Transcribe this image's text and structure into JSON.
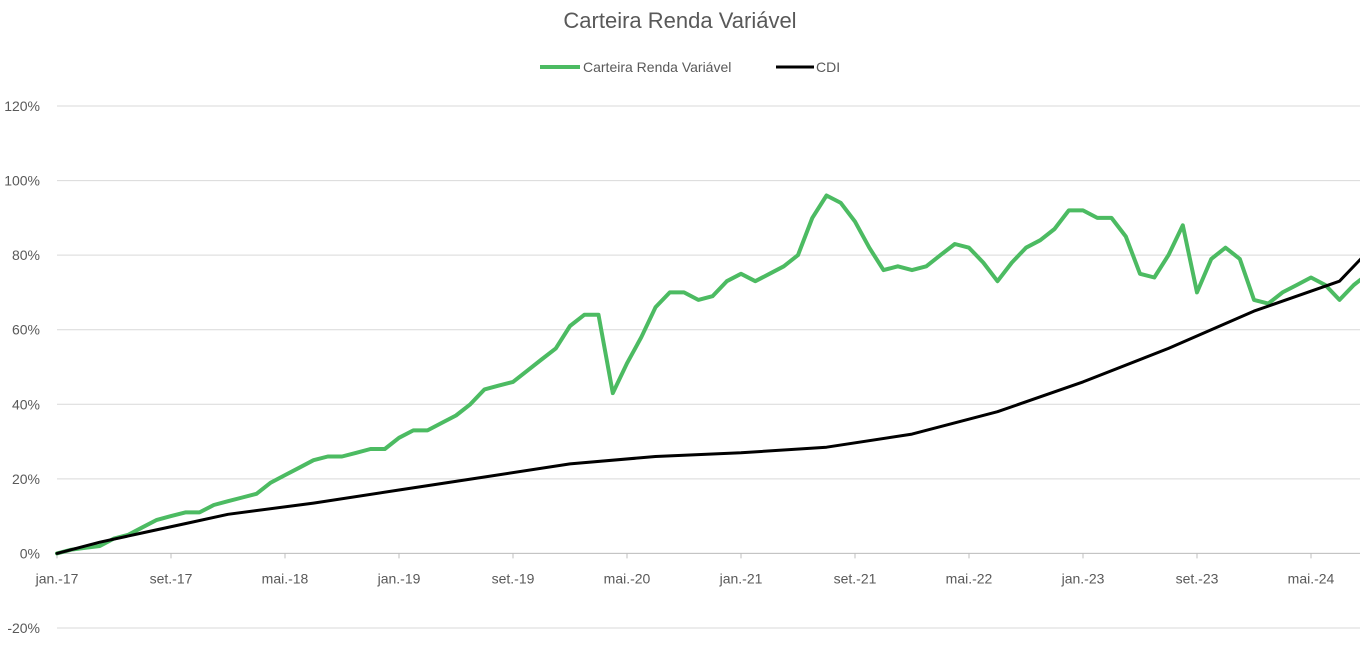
{
  "chart_data": {
    "type": "line",
    "title": "Carteira Renda Variável",
    "xlabel": "",
    "ylabel": "",
    "x_start": "2017-01",
    "x_end": "2024-09",
    "x_ticks": [
      "jan.-17",
      "set.-17",
      "mai.-18",
      "jan.-19",
      "set.-19",
      "mai.-20",
      "jan.-21",
      "set.-21",
      "mai.-22",
      "jan.-23",
      "set.-23",
      "mai.-24"
    ],
    "x_tick_dates": [
      "2017-01",
      "2017-09",
      "2018-05",
      "2019-01",
      "2019-09",
      "2020-05",
      "2021-01",
      "2021-09",
      "2022-05",
      "2023-01",
      "2023-09",
      "2024-05"
    ],
    "y_unit": "%",
    "ylim": [
      -20,
      120
    ],
    "y_ticks": [
      -20,
      0,
      20,
      40,
      60,
      80,
      100,
      120
    ],
    "y_tick_labels": [
      "-20%",
      "0%",
      "20%",
      "40%",
      "60%",
      "80%",
      "100%",
      "120%"
    ],
    "grid": true,
    "legend_position": "top-center",
    "series": [
      {
        "name": "Carteira Renda Variável",
        "color": "#4cbb62",
        "points": [
          [
            "2017-01",
            0
          ],
          [
            "2017-02",
            1
          ],
          [
            "2017-03",
            1.5
          ],
          [
            "2017-04",
            2
          ],
          [
            "2017-05",
            4
          ],
          [
            "2017-06",
            5
          ],
          [
            "2017-07",
            7
          ],
          [
            "2017-08",
            9
          ],
          [
            "2017-09",
            10
          ],
          [
            "2017-10",
            11
          ],
          [
            "2017-11",
            11
          ],
          [
            "2017-12",
            13
          ],
          [
            "2018-01",
            14
          ],
          [
            "2018-02",
            15
          ],
          [
            "2018-03",
            16
          ],
          [
            "2018-04",
            19
          ],
          [
            "2018-05",
            21
          ],
          [
            "2018-06",
            23
          ],
          [
            "2018-07",
            25
          ],
          [
            "2018-08",
            26
          ],
          [
            "2018-09",
            26
          ],
          [
            "2018-10",
            27
          ],
          [
            "2018-11",
            28
          ],
          [
            "2018-12",
            28
          ],
          [
            "2019-01",
            31
          ],
          [
            "2019-02",
            33
          ],
          [
            "2019-03",
            33
          ],
          [
            "2019-04",
            35
          ],
          [
            "2019-05",
            37
          ],
          [
            "2019-06",
            40
          ],
          [
            "2019-07",
            44
          ],
          [
            "2019-08",
            45
          ],
          [
            "2019-09",
            46
          ],
          [
            "2019-10",
            49
          ],
          [
            "2019-11",
            52
          ],
          [
            "2019-12",
            55
          ],
          [
            "2020-01",
            61
          ],
          [
            "2020-02",
            64
          ],
          [
            "2020-03",
            64
          ],
          [
            "2020-04",
            43
          ],
          [
            "2020-05",
            51
          ],
          [
            "2020-06",
            58
          ],
          [
            "2020-07",
            66
          ],
          [
            "2020-08",
            70
          ],
          [
            "2020-09",
            70
          ],
          [
            "2020-10",
            68
          ],
          [
            "2020-11",
            69
          ],
          [
            "2020-12",
            73
          ],
          [
            "2021-01",
            75
          ],
          [
            "2021-02",
            73
          ],
          [
            "2021-03",
            75
          ],
          [
            "2021-04",
            77
          ],
          [
            "2021-05",
            80
          ],
          [
            "2021-06",
            90
          ],
          [
            "2021-07",
            96
          ],
          [
            "2021-08",
            94
          ],
          [
            "2021-09",
            89
          ],
          [
            "2021-10",
            82
          ],
          [
            "2021-11",
            76
          ],
          [
            "2021-12",
            77
          ],
          [
            "2022-01",
            76
          ],
          [
            "2022-02",
            77
          ],
          [
            "2022-03",
            80
          ],
          [
            "2022-04",
            83
          ],
          [
            "2022-05",
            82
          ],
          [
            "2022-06",
            78
          ],
          [
            "2022-07",
            73
          ],
          [
            "2022-08",
            78
          ],
          [
            "2022-09",
            82
          ],
          [
            "2022-10",
            84
          ],
          [
            "2022-11",
            87
          ],
          [
            "2022-12",
            92
          ],
          [
            "2023-01",
            92
          ],
          [
            "2023-02",
            90
          ],
          [
            "2023-03",
            90
          ],
          [
            "2023-04",
            85
          ],
          [
            "2023-05",
            75
          ],
          [
            "2023-06",
            74
          ],
          [
            "2023-07",
            80
          ],
          [
            "2023-08",
            88
          ],
          [
            "2023-09",
            70
          ],
          [
            "2023-10",
            79
          ],
          [
            "2023-11",
            82
          ],
          [
            "2023-12",
            79
          ],
          [
            "2024-01",
            68
          ],
          [
            "2024-02",
            67
          ],
          [
            "2024-03",
            70
          ],
          [
            "2024-04",
            72
          ],
          [
            "2024-05",
            74
          ],
          [
            "2024-06",
            72
          ],
          [
            "2024-07",
            68
          ],
          [
            "2024-08",
            72
          ],
          [
            "2024-09",
            75
          ]
        ]
      },
      {
        "name": "CDI",
        "color": "#000000",
        "points": [
          [
            "2017-01",
            0
          ],
          [
            "2017-04",
            3
          ],
          [
            "2017-07",
            5.5
          ],
          [
            "2017-10",
            8
          ],
          [
            "2018-01",
            10.5
          ],
          [
            "2018-07",
            13.5
          ],
          [
            "2019-01",
            17
          ],
          [
            "2019-07",
            20.5
          ],
          [
            "2020-01",
            24
          ],
          [
            "2020-07",
            26
          ],
          [
            "2021-01",
            27
          ],
          [
            "2021-07",
            28.5
          ],
          [
            "2022-01",
            32
          ],
          [
            "2022-07",
            38
          ],
          [
            "2023-01",
            46
          ],
          [
            "2023-07",
            55
          ],
          [
            "2024-01",
            65
          ],
          [
            "2024-07",
            73
          ],
          [
            "2024-09",
            81
          ]
        ]
      }
    ]
  }
}
